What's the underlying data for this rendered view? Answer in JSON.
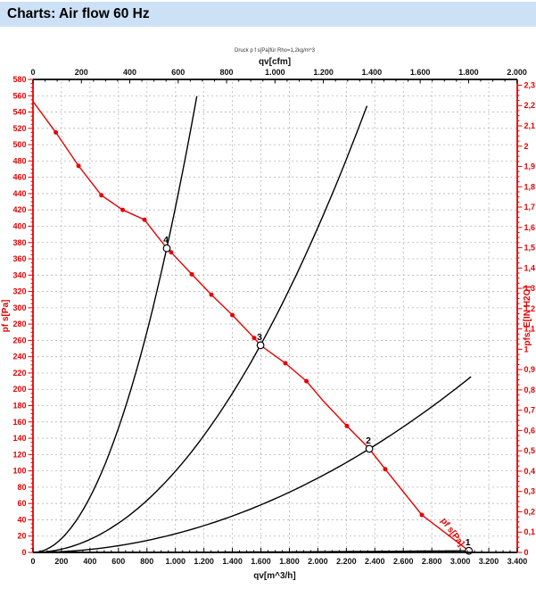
{
  "header": {
    "title": "Charts: Air flow 60 Hz"
  },
  "colors": {
    "header_bg": "#cde1f6",
    "accent_red": "#e60000",
    "grid": "#b5b5b5",
    "curve_black": "#000000"
  },
  "chart_data": {
    "type": "line",
    "subtitle": "Druck p f s[Pa]für Rho=1,2kg/m^3",
    "grid": true,
    "legend": "none",
    "axes": {
      "top": {
        "label": "qv[cfm]",
        "min": 0,
        "max": 2000,
        "to_m3h": 1.699,
        "minor_step": 50,
        "major_step": 200,
        "ticks": [
          [
            0,
            "0"
          ],
          [
            200,
            "200"
          ],
          [
            400,
            "400"
          ],
          [
            600,
            "600"
          ],
          [
            800,
            "800"
          ],
          [
            1000,
            "1.000"
          ],
          [
            1200,
            "1.200"
          ],
          [
            1400,
            "1.400"
          ],
          [
            1600,
            "1.600"
          ],
          [
            1800,
            "1.800"
          ],
          [
            2000,
            "2.000"
          ]
        ]
      },
      "bottom": {
        "label": "qv[m^3/h]",
        "min": 0,
        "max": 3400,
        "minor_step": 50,
        "major_step": 200,
        "grid_step": 200,
        "ticks": [
          [
            0,
            "0"
          ],
          [
            200,
            "200"
          ],
          [
            400,
            "400"
          ],
          [
            600,
            "600"
          ],
          [
            800,
            "800"
          ],
          [
            1000,
            "1.000"
          ],
          [
            1200,
            "1.200"
          ],
          [
            1400,
            "1.400"
          ],
          [
            1600,
            "1.600"
          ],
          [
            1800,
            "1.800"
          ],
          [
            2000,
            "2.000"
          ],
          [
            2200,
            "2.200"
          ],
          [
            2400,
            "2.400"
          ],
          [
            2600,
            "2.600"
          ],
          [
            2800,
            "2.800"
          ],
          [
            3000,
            "3.000"
          ],
          [
            3200,
            "3.200"
          ],
          [
            3400,
            "3.400"
          ]
        ]
      },
      "left": {
        "label": "pf s[Pa]",
        "min": 0,
        "max": 580,
        "minor_step": 5,
        "major_step": 20,
        "grid_step": 20,
        "ticks": [
          [
            0,
            "0"
          ],
          [
            20,
            "20"
          ],
          [
            40,
            "40"
          ],
          [
            60,
            "60"
          ],
          [
            80,
            "80"
          ],
          [
            100,
            "100"
          ],
          [
            120,
            "120"
          ],
          [
            140,
            "140"
          ],
          [
            160,
            "160"
          ],
          [
            180,
            "180"
          ],
          [
            200,
            "200"
          ],
          [
            220,
            "220"
          ],
          [
            240,
            "240"
          ],
          [
            260,
            "260"
          ],
          [
            280,
            "280"
          ],
          [
            300,
            "300"
          ],
          [
            320,
            "320"
          ],
          [
            340,
            "340"
          ],
          [
            360,
            "360"
          ],
          [
            380,
            "380"
          ],
          [
            400,
            "400"
          ],
          [
            420,
            "420"
          ],
          [
            440,
            "440"
          ],
          [
            460,
            "460"
          ],
          [
            480,
            "480"
          ],
          [
            500,
            "500"
          ],
          [
            520,
            "520"
          ],
          [
            540,
            "540"
          ],
          [
            560,
            "560"
          ],
          [
            580,
            "580"
          ]
        ]
      },
      "right": {
        "label": "pfs_E[IN H2O]",
        "min": 0,
        "max": 2.3,
        "to_pa": 249.089,
        "minor_step": 0.025,
        "major_step": 0.1,
        "ticks": [
          [
            0,
            "0"
          ],
          [
            0.1,
            "0,1"
          ],
          [
            0.2,
            "0,2"
          ],
          [
            0.3,
            "0,3"
          ],
          [
            0.4,
            "0,4"
          ],
          [
            0.5,
            "0,5"
          ],
          [
            0.6,
            "0,6"
          ],
          [
            0.7,
            "0,7"
          ],
          [
            0.8,
            "0,8"
          ],
          [
            0.9,
            "0,9"
          ],
          [
            1,
            "1"
          ],
          [
            1.1,
            "1,1"
          ],
          [
            1.2,
            "1,2"
          ],
          [
            1.3,
            "1,3"
          ],
          [
            1.4,
            "1,4"
          ],
          [
            1.5,
            "1,5"
          ],
          [
            1.6,
            "1,6"
          ],
          [
            1.7,
            "1,7"
          ],
          [
            1.8,
            "1,8"
          ],
          [
            1.9,
            "1,9"
          ],
          [
            2,
            "2"
          ],
          [
            2.1,
            "2,1"
          ],
          [
            2.2,
            "2,2"
          ],
          [
            2.3,
            "2,3"
          ]
        ]
      }
    },
    "fan_curve": {
      "label": "pf s[Pa]",
      "color": "#e60000",
      "points": [
        [
          0,
          553
        ],
        [
          160,
          515
        ],
        [
          320,
          474
        ],
        [
          480,
          438
        ],
        [
          630,
          420
        ],
        [
          783,
          408
        ],
        [
          939,
          373
        ],
        [
          970,
          368
        ],
        [
          1115,
          341
        ],
        [
          1252,
          316
        ],
        [
          1400,
          291
        ],
        [
          1553,
          263
        ],
        [
          1597,
          254
        ],
        [
          1772,
          232
        ],
        [
          1920,
          210
        ],
        [
          2041,
          185
        ],
        [
          2204,
          155
        ],
        [
          2361,
          127
        ],
        [
          2473,
          102
        ],
        [
          2730,
          46
        ],
        [
          3060,
          2
        ]
      ],
      "markers": [
        [
          160,
          515
        ],
        [
          320,
          474
        ],
        [
          480,
          438
        ],
        [
          630,
          420
        ],
        [
          783,
          408
        ],
        [
          970,
          368
        ],
        [
          1115,
          341
        ],
        [
          1252,
          316
        ],
        [
          1400,
          291
        ],
        [
          1553,
          263
        ],
        [
          1772,
          232
        ],
        [
          1920,
          210
        ],
        [
          2204,
          155
        ],
        [
          2473,
          102
        ],
        [
          2730,
          46
        ]
      ]
    },
    "system_curves": [
      {
        "label": "4",
        "qv": 939,
        "p": 373,
        "qv_end": 1150
      },
      {
        "label": "3",
        "qv": 1597,
        "p": 254,
        "qv_end": 2345
      },
      {
        "label": "2",
        "qv": 2361,
        "p": 127,
        "qv_end": 3075
      },
      {
        "label": "1",
        "qv": 3060,
        "p": 2,
        "qv_end": 3075
      }
    ],
    "duty_points": [
      {
        "label": "4",
        "qv": 939,
        "p": 373
      },
      {
        "label": "3",
        "qv": 1597,
        "p": 254
      },
      {
        "label": "2",
        "qv": 2361,
        "p": 127
      },
      {
        "label": "1",
        "qv": 3060,
        "p": 2
      }
    ]
  }
}
